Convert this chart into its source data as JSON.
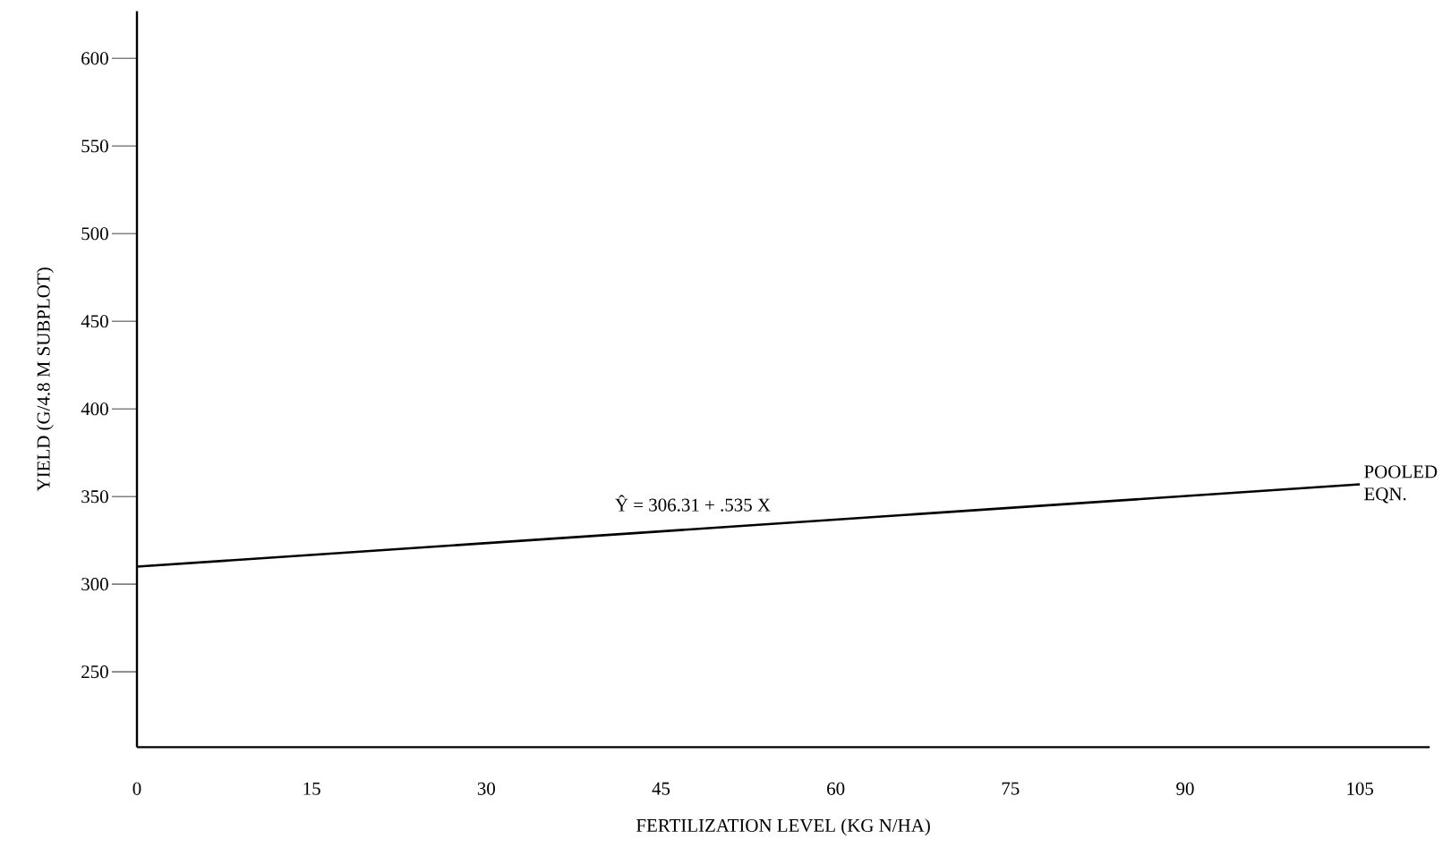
{
  "chart_data": {
    "type": "line",
    "xlabel": "FERTILIZATION LEVEL (KG N/HA)",
    "ylabel": "YIELD (G/4.8 M SUBPLOT)",
    "x": [
      0,
      105
    ],
    "series": [
      {
        "color": "#000000",
        "values": [
          310,
          357
        ]
      }
    ],
    "xlim": [
      0,
      111
    ],
    "ylim": [
      207,
      627
    ],
    "xticks": [
      0,
      15,
      30,
      45,
      60,
      75,
      90,
      105
    ],
    "yticks": [
      250,
      300,
      350,
      400,
      450,
      500,
      550,
      600
    ],
    "annotations": [
      "Ŷ = 306.31 + .535 X",
      {
        "text": "POOLED EQN.",
        "x": 105,
        "y": 357
      }
    ]
  }
}
